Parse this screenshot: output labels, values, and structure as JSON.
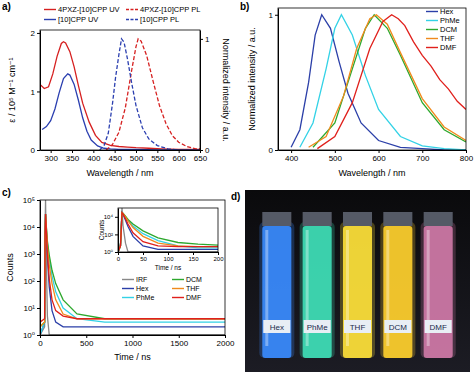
{
  "chart_data": [
    {
      "type": "line",
      "panel_label": "a)",
      "x_label": "Wavelength / nm",
      "y_label": "ε / 10⁵ M⁻¹ cm⁻¹",
      "y2_label": "Normalized intensity / a.u.",
      "xlim": [
        275,
        650
      ],
      "xticks": [
        300,
        350,
        400,
        450,
        500,
        550,
        600,
        650
      ],
      "ylim": [
        0,
        2.05
      ],
      "yticks": [
        0,
        1,
        2
      ],
      "y2lim": [
        0,
        1.08
      ],
      "y2ticks": [
        0,
        1
      ],
      "legend": "top",
      "series": [
        {
          "name": "4PXZ-[10]CPP UV",
          "color": "#d62020",
          "line_style": "solid",
          "x": [
            275,
            285,
            295,
            305,
            315,
            325,
            330,
            335,
            345,
            355,
            365,
            375,
            390,
            405,
            420,
            440,
            460,
            480,
            500,
            530,
            560,
            600,
            650
          ],
          "values": [
            1.12,
            1.05,
            1.08,
            1.3,
            1.6,
            1.82,
            1.85,
            1.83,
            1.68,
            1.42,
            1.1,
            0.8,
            0.48,
            0.25,
            0.13,
            0.08,
            0.06,
            0.05,
            0.04,
            0.03,
            0.02,
            0.01,
            0.01
          ]
        },
        {
          "name": "[10]CPP UV",
          "color": "#2b3fb0",
          "line_style": "solid",
          "x": [
            280,
            290,
            300,
            310,
            320,
            330,
            340,
            345,
            355,
            365,
            375,
            385,
            395,
            410,
            425,
            440,
            460,
            500,
            550,
            600,
            650
          ],
          "values": [
            0.35,
            0.4,
            0.5,
            0.7,
            0.98,
            1.22,
            1.3,
            1.28,
            1.12,
            0.85,
            0.55,
            0.32,
            0.17,
            0.07,
            0.03,
            0.02,
            0.01,
            0.01,
            0,
            0,
            0
          ]
        },
        {
          "name": "4PXZ-[10]CPP PL",
          "color": "#d62020",
          "line_style": "dashed",
          "axis": "y2",
          "x": [
            430,
            445,
            460,
            475,
            490,
            500,
            505,
            512,
            525,
            540,
            555,
            570,
            585,
            600,
            620,
            640,
            650
          ],
          "values": [
            0,
            0.05,
            0.16,
            0.38,
            0.72,
            0.93,
            1.0,
            0.98,
            0.85,
            0.62,
            0.4,
            0.24,
            0.13,
            0.07,
            0.03,
            0.01,
            0.01
          ]
        },
        {
          "name": "[10]CPP PL",
          "color": "#2b3fb0",
          "line_style": "dashed",
          "axis": "y2",
          "x": [
            415,
            425,
            435,
            445,
            452,
            460,
            466,
            472,
            480,
            490,
            500,
            515,
            530,
            550,
            575,
            600
          ],
          "values": [
            0,
            0.04,
            0.15,
            0.42,
            0.65,
            0.86,
            1.0,
            0.97,
            0.82,
            0.6,
            0.4,
            0.2,
            0.1,
            0.04,
            0.01,
            0
          ]
        }
      ]
    },
    {
      "type": "line",
      "panel_label": "b)",
      "x_label": "Wavelength / nm",
      "y_label": "Normalized intensity / a.u.",
      "xlim": [
        370,
        800
      ],
      "xticks": [
        400,
        500,
        600,
        700,
        800
      ],
      "ylim": [
        0,
        1.05
      ],
      "yticks": [
        0,
        1
      ],
      "legend": "top-right",
      "series": [
        {
          "name": "Hex",
          "color": "#2b3fa8",
          "x": [
            400,
            420,
            440,
            455,
            470,
            490,
            510,
            530,
            560,
            600,
            650,
            700,
            750,
            800
          ],
          "values": [
            0.02,
            0.15,
            0.5,
            0.85,
            1,
            0.9,
            0.65,
            0.42,
            0.2,
            0.07,
            0.02,
            0.01,
            0,
            0
          ]
        },
        {
          "name": "PhMe",
          "color": "#33d2e6",
          "x": [
            420,
            450,
            480,
            500,
            515,
            540,
            570,
            600,
            650,
            700,
            750,
            800
          ],
          "values": [
            0.02,
            0.2,
            0.6,
            0.9,
            1,
            0.85,
            0.55,
            0.3,
            0.1,
            0.03,
            0.01,
            0
          ]
        },
        {
          "name": "DCM",
          "color": "#2ea82e",
          "x": [
            450,
            500,
            540,
            570,
            590,
            620,
            650,
            700,
            750,
            800
          ],
          "values": [
            0.02,
            0.2,
            0.6,
            0.9,
            1,
            0.9,
            0.7,
            0.35,
            0.15,
            0.06
          ]
        },
        {
          "name": "THF",
          "color": "#f08a1c",
          "x": [
            440,
            480,
            520,
            550,
            580,
            595,
            620,
            650,
            700,
            750,
            800
          ],
          "values": [
            0.02,
            0.1,
            0.4,
            0.75,
            0.97,
            1,
            0.93,
            0.72,
            0.38,
            0.17,
            0.07
          ]
        },
        {
          "name": "DMF",
          "color": "#e0201c",
          "x": [
            460,
            500,
            540,
            580,
            610,
            630,
            645,
            660,
            680,
            700,
            720,
            740,
            760,
            780,
            800
          ],
          "values": [
            0.01,
            0.1,
            0.35,
            0.75,
            0.95,
            1,
            0.97,
            0.92,
            0.8,
            0.7,
            0.62,
            0.52,
            0.45,
            0.36,
            0.3
          ]
        }
      ]
    },
    {
      "type": "line",
      "panel_label": "c)",
      "x_label": "Time / ns",
      "y_label": "Counts",
      "log": "y",
      "xlim": [
        0,
        2000
      ],
      "xticks": [
        0,
        500,
        1000,
        1500,
        2000
      ],
      "ylim": [
        1,
        100000
      ],
      "yticks": [
        {
          "value": 1,
          "label": "10⁰"
        },
        {
          "value": 10,
          "label": "10¹"
        },
        {
          "value": 100,
          "label": "10²"
        },
        {
          "value": 1000,
          "label": "10³"
        },
        {
          "value": 10000,
          "label": "10⁴"
        },
        {
          "value": 100000,
          "label": "10⁵"
        }
      ],
      "legend": "right",
      "x": [
        0,
        50,
        55,
        60,
        70,
        80,
        100,
        130,
        170,
        250,
        400,
        700,
        1000,
        1500,
        2000
      ],
      "series": [
        {
          "name": "IRF",
          "color": "#888888",
          "values": [
            1,
            2,
            10000,
            100000,
            300,
            5,
            1,
            1,
            1,
            1,
            1,
            1,
            1,
            1,
            1
          ]
        },
        {
          "name": "Hex",
          "color": "#2b3fa8",
          "values": [
            1,
            3,
            5000,
            30000,
            5000,
            800,
            60,
            8,
            3,
            2,
            2,
            2,
            2,
            2,
            2
          ]
        },
        {
          "name": "PhMe",
          "color": "#33d2e6",
          "values": [
            1,
            3,
            5000,
            30000,
            8000,
            2500,
            700,
            150,
            40,
            10,
            4,
            3,
            3,
            3,
            3
          ]
        },
        {
          "name": "DCM",
          "color": "#2ea82e",
          "values": [
            2,
            3,
            5000,
            30000,
            9000,
            3000,
            900,
            250,
            80,
            20,
            6,
            4,
            4,
            4,
            4
          ]
        },
        {
          "name": "THF",
          "color": "#f08a1c",
          "values": [
            2,
            3,
            5000,
            30000,
            8000,
            2000,
            400,
            80,
            20,
            6,
            4,
            4,
            4,
            4,
            4
          ]
        },
        {
          "name": "DMF",
          "color": "#e0201c",
          "values": [
            3,
            4,
            5000,
            30000,
            6000,
            1000,
            120,
            20,
            8,
            5,
            4,
            4,
            4,
            4,
            4
          ]
        }
      ]
    },
    {
      "type": "line",
      "x_label": "Time / ns",
      "y_label": "Counts",
      "log": "y",
      "xlim": [
        0,
        200
      ],
      "xticks": [
        0,
        50,
        100,
        150,
        200
      ],
      "ylim": [
        1,
        100000
      ],
      "yticks": [
        {
          "value": 1,
          "label": "10⁰"
        },
        {
          "value": 100,
          "label": "10²"
        },
        {
          "value": 10000,
          "label": "10⁴"
        }
      ],
      "x": [
        0,
        5,
        8,
        10,
        15,
        20,
        30,
        50,
        80,
        120,
        160,
        200
      ],
      "series": [
        {
          "color": "#888888",
          "values": [
            1,
            10,
            100000,
            1000,
            10,
            1,
            1,
            1,
            1,
            1,
            1,
            1
          ]
        },
        {
          "color": "#2b3fa8",
          "values": [
            1,
            5,
            30000,
            20000,
            4000,
            800,
            60,
            5,
            2,
            2,
            2,
            2
          ]
        },
        {
          "color": "#33d2e6",
          "values": [
            1,
            5,
            30000,
            25000,
            10000,
            4000,
            900,
            120,
            20,
            5,
            3,
            3
          ]
        },
        {
          "color": "#2ea82e",
          "values": [
            1,
            5,
            30000,
            25000,
            12000,
            5000,
            1500,
            250,
            40,
            12,
            8,
            6
          ]
        },
        {
          "color": "#f08a1c",
          "values": [
            1,
            5,
            30000,
            24000,
            10000,
            3500,
            600,
            60,
            10,
            5,
            4,
            4
          ]
        },
        {
          "color": "#e0201c",
          "values": [
            1,
            5,
            30000,
            22000,
            6000,
            1500,
            150,
            15,
            5,
            4,
            4,
            4
          ]
        }
      ]
    },
    {
      "type": "photo",
      "panel_label": "d)",
      "categories": [
        "Hex",
        "PhMe",
        "THF",
        "DCM",
        "DMF"
      ],
      "colors": [
        "#3a8cff",
        "#3fe0b8",
        "#ffe23a",
        "#ffd02e",
        "#d07aa8"
      ]
    }
  ]
}
